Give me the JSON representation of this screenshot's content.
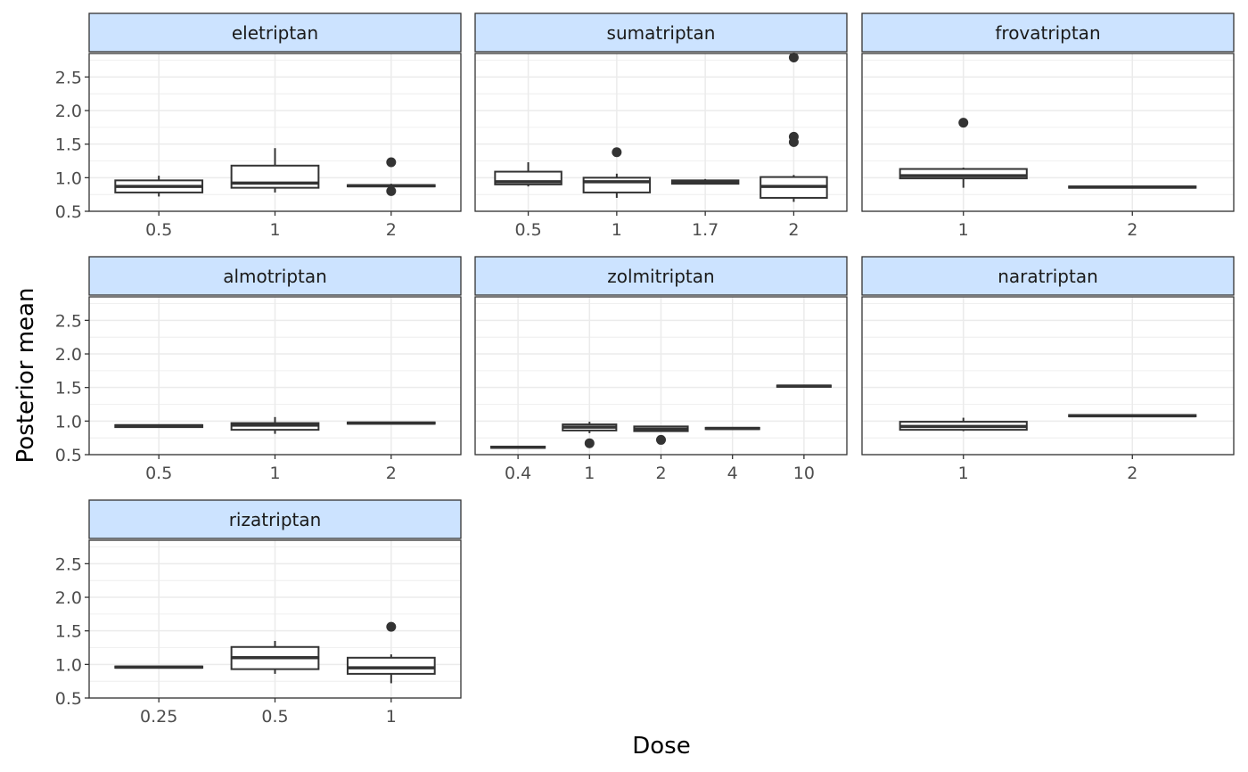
{
  "chart_data": {
    "type": "boxplot",
    "xlabel": "Dose",
    "ylabel": "Posterior mean",
    "ylim": [
      0.5,
      2.85
    ],
    "y_ticks": [
      0.5,
      1.0,
      1.5,
      2.0,
      2.5
    ],
    "y_tick_labels": [
      "0.5",
      "1.0",
      "1.5",
      "2.0",
      "2.5"
    ],
    "facet_layout": "wrap-3-columns",
    "free_x": true,
    "grid": true,
    "colors": {
      "strip_fill": "#CCE3FF",
      "box_stroke": "#333333",
      "grid": "#EBEBEB",
      "panel_border": "#333333"
    },
    "panels": [
      {
        "name": "eletriptan",
        "categories": [
          "0.5",
          "1",
          "2"
        ],
        "boxes": [
          {
            "dose": "0.5",
            "lower_whisker": 0.72,
            "q1": 0.78,
            "median": 0.87,
            "q3": 0.96,
            "upper_whisker": 1.03,
            "outliers": []
          },
          {
            "dose": "1",
            "lower_whisker": 0.78,
            "q1": 0.85,
            "median": 0.92,
            "q3": 1.18,
            "upper_whisker": 1.44,
            "outliers": []
          },
          {
            "dose": "2",
            "lower_whisker": 0.86,
            "q1": 0.87,
            "median": 0.88,
            "q3": 0.89,
            "upper_whisker": 0.91,
            "outliers": [
              1.23,
              0.8
            ]
          }
        ]
      },
      {
        "name": "sumatriptan",
        "categories": [
          "0.5",
          "1",
          "1.7",
          "2"
        ],
        "boxes": [
          {
            "dose": "0.5",
            "lower_whisker": 0.87,
            "q1": 0.9,
            "median": 0.94,
            "q3": 1.09,
            "upper_whisker": 1.23,
            "outliers": []
          },
          {
            "dose": "1",
            "lower_whisker": 0.7,
            "q1": 0.78,
            "median": 0.94,
            "q3": 1.0,
            "upper_whisker": 1.06,
            "outliers": [
              1.38
            ]
          },
          {
            "dose": "1.7",
            "lower_whisker": 0.9,
            "q1": 0.91,
            "median": 0.94,
            "q3": 0.96,
            "upper_whisker": 0.98,
            "outliers": []
          },
          {
            "dose": "2",
            "lower_whisker": 0.64,
            "q1": 0.7,
            "median": 0.87,
            "q3": 1.01,
            "upper_whisker": 1.04,
            "outliers": [
              2.79,
              1.61,
              1.53
            ]
          }
        ]
      },
      {
        "name": "frovatriptan",
        "categories": [
          "1",
          "2"
        ],
        "boxes": [
          {
            "dose": "1",
            "lower_whisker": 0.85,
            "q1": 0.99,
            "median": 1.03,
            "q3": 1.13,
            "upper_whisker": 1.15,
            "outliers": [
              1.82
            ]
          },
          {
            "dose": "2",
            "lower_whisker": 0.85,
            "q1": 0.85,
            "median": 0.86,
            "q3": 0.87,
            "upper_whisker": 0.87,
            "outliers": []
          }
        ]
      },
      {
        "name": "almotriptan",
        "categories": [
          "0.5",
          "1",
          "2"
        ],
        "boxes": [
          {
            "dose": "0.5",
            "lower_whisker": 0.91,
            "q1": 0.91,
            "median": 0.93,
            "q3": 0.94,
            "upper_whisker": 0.94,
            "outliers": []
          },
          {
            "dose": "1",
            "lower_whisker": 0.81,
            "q1": 0.87,
            "median": 0.94,
            "q3": 0.97,
            "upper_whisker": 1.06,
            "outliers": []
          },
          {
            "dose": "2",
            "lower_whisker": 0.96,
            "q1": 0.96,
            "median": 0.97,
            "q3": 0.98,
            "upper_whisker": 0.98,
            "outliers": []
          }
        ]
      },
      {
        "name": "zolmitriptan",
        "categories": [
          "0.4",
          "1",
          "2",
          "4",
          "10"
        ],
        "boxes": [
          {
            "dose": "0.4",
            "lower_whisker": 0.6,
            "q1": 0.6,
            "median": 0.61,
            "q3": 0.62,
            "upper_whisker": 0.62,
            "outliers": []
          },
          {
            "dose": "1",
            "lower_whisker": 0.82,
            "q1": 0.86,
            "median": 0.91,
            "q3": 0.95,
            "upper_whisker": 0.99,
            "outliers": [
              0.67
            ]
          },
          {
            "dose": "2",
            "lower_whisker": 0.85,
            "q1": 0.85,
            "median": 0.88,
            "q3": 0.92,
            "upper_whisker": 0.93,
            "outliers": [
              0.72
            ]
          },
          {
            "dose": "4",
            "lower_whisker": 0.88,
            "q1": 0.88,
            "median": 0.89,
            "q3": 0.9,
            "upper_whisker": 0.9,
            "outliers": []
          },
          {
            "dose": "10",
            "lower_whisker": 1.51,
            "q1": 1.51,
            "median": 1.52,
            "q3": 1.53,
            "upper_whisker": 1.53,
            "outliers": []
          }
        ]
      },
      {
        "name": "naratriptan",
        "categories": [
          "1",
          "2"
        ],
        "boxes": [
          {
            "dose": "1",
            "lower_whisker": 0.85,
            "q1": 0.87,
            "median": 0.92,
            "q3": 0.99,
            "upper_whisker": 1.05,
            "outliers": []
          },
          {
            "dose": "2",
            "lower_whisker": 1.07,
            "q1": 1.07,
            "median": 1.08,
            "q3": 1.09,
            "upper_whisker": 1.1,
            "outliers": []
          }
        ]
      },
      {
        "name": "rizatriptan",
        "categories": [
          "0.25",
          "0.5",
          "1"
        ],
        "boxes": [
          {
            "dose": "0.25",
            "lower_whisker": 0.95,
            "q1": 0.95,
            "median": 0.96,
            "q3": 0.97,
            "upper_whisker": 0.97,
            "outliers": []
          },
          {
            "dose": "0.5",
            "lower_whisker": 0.86,
            "q1": 0.93,
            "median": 1.1,
            "q3": 1.26,
            "upper_whisker": 1.35,
            "outliers": []
          },
          {
            "dose": "1",
            "lower_whisker": 0.72,
            "q1": 0.86,
            "median": 0.95,
            "q3": 1.1,
            "upper_whisker": 1.15,
            "outliers": [
              1.56
            ]
          }
        ]
      }
    ]
  }
}
